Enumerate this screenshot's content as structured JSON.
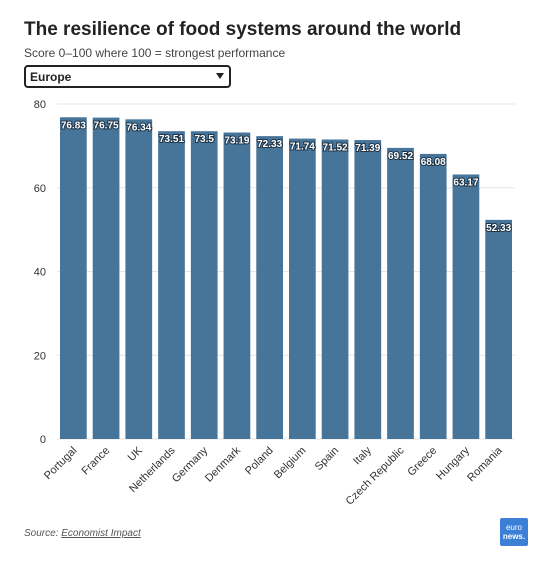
{
  "header": {
    "title": "The resilience of food systems around the world",
    "subtitle": "Score 0–100 where 100 = strongest performance"
  },
  "filter": {
    "selected": "Europe"
  },
  "footer": {
    "source_prefix": "Source: ",
    "source_link": "Economist Impact",
    "logo_top": "euro",
    "logo_bottom": "news."
  },
  "colors": {
    "bar": "#477499",
    "grid": "#e6e6e6",
    "axis_text": "#333333",
    "label_text": "#ffffff",
    "logo": "#3b7fd6"
  },
  "chart_data": {
    "type": "bar",
    "categories": [
      "Portugal",
      "France",
      "UK",
      "Netherlands",
      "Germany",
      "Denmark",
      "Poland",
      "Belgium",
      "Spain",
      "Italy",
      "Czech Republic",
      "Greece",
      "Hungary",
      "Romania"
    ],
    "values": [
      76.83,
      76.75,
      76.34,
      73.51,
      73.5,
      73.19,
      72.33,
      71.74,
      71.52,
      71.39,
      69.52,
      68.08,
      63.17,
      52.33
    ],
    "value_labels": [
      "76.83",
      "76.75",
      "76.34",
      "73.51",
      "73.5",
      "73.19",
      "72.33",
      "71.74",
      "71.52",
      "71.39",
      "69.52",
      "68.08",
      "63.17",
      "52.33"
    ],
    "ylim": [
      0,
      80
    ],
    "yticks": [
      0,
      20,
      40,
      60,
      80
    ],
    "grid": true,
    "xlabel": "",
    "ylabel": ""
  }
}
